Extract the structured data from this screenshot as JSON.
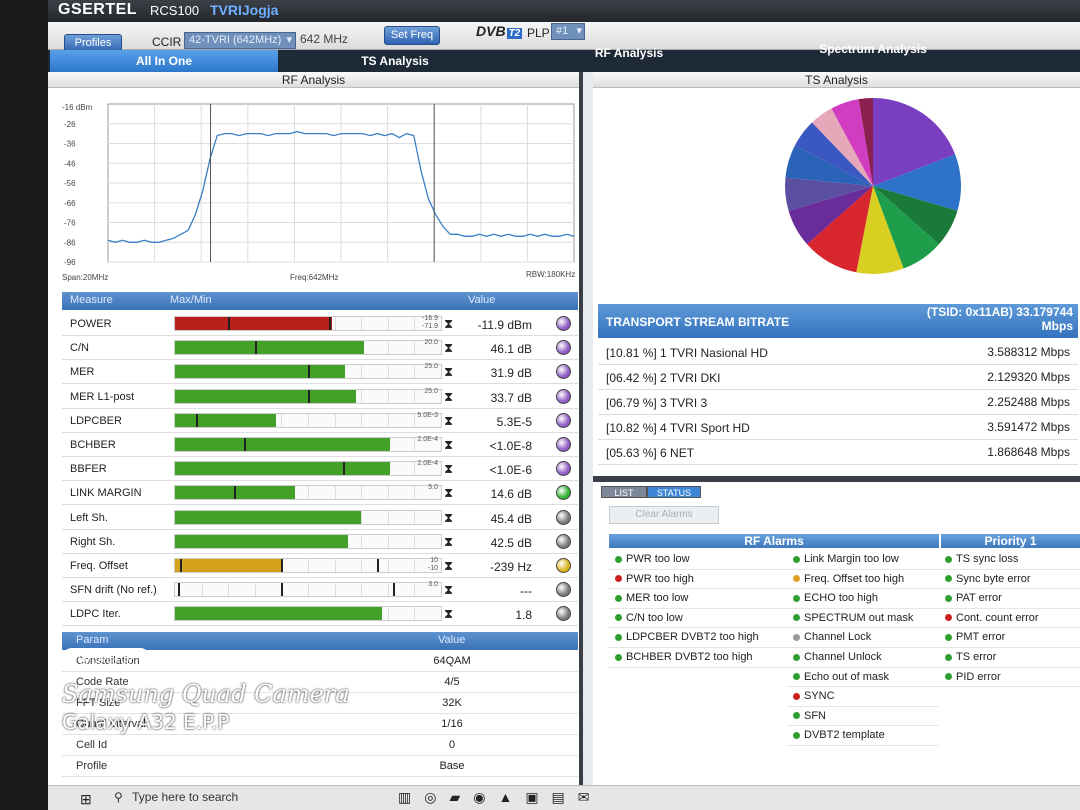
{
  "header": {
    "brand": "GSERTEL",
    "model": "RCS100",
    "station": "TVRIJogja"
  },
  "controls": {
    "profiles_label": "Profiles",
    "standard_label": "CCIR",
    "channel_value": "42-TVRI (642MHz)",
    "freq_text": "642 MHz",
    "set_freq_label": "Set Freq",
    "dvb_label": "DVB",
    "dvb_badge": "T2",
    "plp_label": "PLP",
    "plp_value": "#1"
  },
  "tabs": [
    {
      "label": "All In One",
      "active": true
    },
    {
      "label": "TS Analysis",
      "active": false
    },
    {
      "label": "RF Analysis",
      "active": false
    },
    {
      "label": "Spectrum Analysis",
      "active": false
    }
  ],
  "rf_panel": {
    "title": "RF Analysis",
    "ytick_top": "-16 dBm",
    "yticks": [
      "-26",
      "-36",
      "-46",
      "-56",
      "-66",
      "-76",
      "-86",
      "-96"
    ],
    "span_label": "Span:20MHz",
    "freq_label": "Freq:642MHz",
    "rbw_label": "RBW:180KHz",
    "spectrum_levels_dbm": [
      -85,
      -86,
      -85,
      -86,
      -86,
      -85,
      -86,
      -86,
      -85,
      -84,
      -82,
      -80,
      -72,
      -60,
      -44,
      -32,
      -31,
      -31,
      -32,
      -31,
      -31,
      -31,
      -32,
      -31,
      -31,
      -31,
      -30,
      -31,
      -31,
      -31,
      -31,
      -32,
      -31,
      -31,
      -31,
      -31,
      -32,
      -31,
      -32,
      -31,
      -33,
      -31,
      -32,
      -50,
      -64,
      -72,
      -78,
      -82,
      -82,
      -83,
      -83,
      -82,
      -83,
      -82,
      -83,
      -82,
      -83,
      -83,
      -82,
      -83,
      -82,
      -83,
      -83,
      -82,
      -83
    ]
  },
  "measure": {
    "headers": {
      "name": "Measure",
      "maxmin": "Max/Min",
      "value": "Value"
    },
    "rows": [
      {
        "name": "POWER",
        "fill": 0.59,
        "color": "#b8201a",
        "marks": [
          0.2,
          0.58
        ],
        "limit_top": "-16.9",
        "limit_bot": "-71.9",
        "value": "-11.9 dBm",
        "led": "#8f5cc8"
      },
      {
        "name": "C/N",
        "fill": 0.71,
        "color": "#43a12a",
        "marks": [
          0.3
        ],
        "limit_top": "20.0",
        "limit_bot": "",
        "value": "46.1 dB",
        "led": "#8f5cc8"
      },
      {
        "name": "MER",
        "fill": 0.64,
        "color": "#43a12a",
        "marks": [
          0.5
        ],
        "limit_top": "25.0",
        "limit_bot": "",
        "value": "31.9 dB",
        "led": "#8f5cc8"
      },
      {
        "name": "MER L1-post",
        "fill": 0.68,
        "color": "#43a12a",
        "marks": [
          0.5
        ],
        "limit_top": "25.0",
        "limit_bot": "",
        "value": "33.7 dB",
        "led": "#8f5cc8"
      },
      {
        "name": "LDPCBER",
        "fill": 0.38,
        "color": "#43a12a",
        "marks": [
          0.08
        ],
        "limit_top": "5.0E-3",
        "limit_bot": "",
        "value": "5.3E-5",
        "led": "#8f5cc8"
      },
      {
        "name": "BCHBER",
        "fill": 0.81,
        "color": "#43a12a",
        "marks": [
          0.26
        ],
        "limit_top": "2.0E-4",
        "limit_bot": "",
        "value": "<1.0E-8",
        "led": "#8f5cc8"
      },
      {
        "name": "BBFER",
        "fill": 0.81,
        "color": "#43a12a",
        "marks": [
          0.63
        ],
        "limit_top": "2.0E-4",
        "limit_bot": "",
        "value": "<1.0E-6",
        "led": "#8f5cc8"
      },
      {
        "name": "LINK MARGIN",
        "fill": 0.45,
        "color": "#43a12a",
        "marks": [
          0.22
        ],
        "limit_top": "5.0",
        "limit_bot": "",
        "value": "14.6 dB",
        "led": "#2fb02f"
      },
      {
        "name": "Left Sh.",
        "fill": 0.7,
        "color": "#43a12a",
        "marks": [],
        "limit_top": "",
        "limit_bot": "",
        "value": "45.4 dB",
        "led": "#7a7a7a"
      },
      {
        "name": "Right Sh.",
        "fill": 0.65,
        "color": "#43a12a",
        "marks": [],
        "limit_top": "",
        "limit_bot": "",
        "value": "42.5 dB",
        "led": "#7a7a7a"
      },
      {
        "name": "Freq. Offset",
        "fill": 0.4,
        "color": "#d4a21d",
        "marks": [
          0.02,
          0.4,
          0.76
        ],
        "limit_top": "10",
        "limit_bot": "-10",
        "value": "-239 Hz",
        "led": "#d8b318"
      },
      {
        "name": "SFN drift (No ref.)",
        "fill": 0,
        "color": "#43a12a",
        "marks": [
          0.01,
          0.4,
          0.82
        ],
        "limit_top": "3.0",
        "limit_bot": "",
        "value": "---",
        "led": "#7a7a7a"
      },
      {
        "name": "LDPC Iter.",
        "fill": 0.78,
        "color": "#43a12a",
        "marks": [],
        "limit_top": "",
        "limit_bot": "",
        "value": "1.8",
        "led": "#7a7a7a"
      }
    ]
  },
  "params": {
    "headers": {
      "name": "Param",
      "value": "Value"
    },
    "rows": [
      {
        "name": "Constellation",
        "value": "64QAM"
      },
      {
        "name": "Code Rate",
        "value": "4/5"
      },
      {
        "name": "FFT Size",
        "value": "32K"
      },
      {
        "name": "Guard Interval",
        "value": "1/16"
      },
      {
        "name": "Cell Id",
        "value": "0"
      },
      {
        "name": "Profile",
        "value": "Base"
      }
    ]
  },
  "ts_panel": {
    "title": "TS Analysis",
    "pie_slices": [
      {
        "value": 22,
        "color": "#7a3fc0"
      },
      {
        "value": 12,
        "color": "#2e73c9"
      },
      {
        "value": 8,
        "color": "#1a7a3a"
      },
      {
        "value": 9,
        "color": "#1e9e4a"
      },
      {
        "value": 10,
        "color": "#d8cf22"
      },
      {
        "value": 12,
        "color": "#d8262e"
      },
      {
        "value": 8,
        "color": "#6a2c9a"
      },
      {
        "value": 7,
        "color": "#5a4fa0"
      },
      {
        "value": 7,
        "color": "#2a63b8"
      },
      {
        "value": 6,
        "color": "#3b57c2"
      },
      {
        "value": 5,
        "color": "#e4a8b8"
      },
      {
        "value": 6,
        "color": "#d23cc0"
      },
      {
        "value": 3,
        "color": "#8a2050"
      }
    ],
    "bitrate_title": "TRANSPORT STREAM BITRATE",
    "tsid_line1": "(TSID: 0x11AB) 33.179744",
    "tsid_line2": "Mbps",
    "services": [
      {
        "name": "[10.81 %] 1 TVRI Nasional HD",
        "rate": "3.588312 Mbps"
      },
      {
        "name": "[06.42 %] 2 TVRI DKI",
        "rate": "2.129320 Mbps"
      },
      {
        "name": "[06.79 %] 3 TVRI 3",
        "rate": "2.252488 Mbps"
      },
      {
        "name": "[10.82 %] 4 TVRI Sport HD",
        "rate": "3.591472 Mbps"
      },
      {
        "name": "[05.63 %] 6 NET",
        "rate": "1.868648 Mbps"
      }
    ]
  },
  "alarms": {
    "tab_list": "LIST",
    "tab_status": "STATUS",
    "clear_label": "Clear Alarms",
    "rf_header": "RF Alarms",
    "priority_header": "Priority 1",
    "col1": [
      {
        "label": "PWR too low",
        "color": "#2fa02f"
      },
      {
        "label": "PWR too high",
        "color": "#cc2020"
      },
      {
        "label": "MER too low",
        "color": "#2fa02f"
      },
      {
        "label": "C/N too low",
        "color": "#2fa02f"
      },
      {
        "label": "LDPCBER DVBT2 too high",
        "color": "#2fa02f"
      },
      {
        "label": "BCHBER DVBT2 too high",
        "color": "#2fa02f"
      }
    ],
    "col2": [
      {
        "label": "Link Margin too low",
        "color": "#2fa02f"
      },
      {
        "label": "Freq. Offset too high",
        "color": "#e0a020"
      },
      {
        "label": "ECHO too high",
        "color": "#2fa02f"
      },
      {
        "label": "SPECTRUM out mask",
        "color": "#2fa02f"
      },
      {
        "label": "Channel Lock",
        "color": "#999999"
      },
      {
        "label": "Channel Unlock",
        "color": "#2fa02f"
      },
      {
        "label": "Echo out of mask",
        "color": "#2fa02f"
      },
      {
        "label": "SYNC",
        "color": "#cc2020"
      },
      {
        "label": "SFN",
        "color": "#2fa02f"
      },
      {
        "label": "DVBT2 template",
        "color": "#2fa02f"
      }
    ],
    "col3": [
      {
        "label": "TS sync loss",
        "color": "#2fa02f"
      },
      {
        "label": "Sync byte error",
        "color": "#2fa02f"
      },
      {
        "label": "PAT error",
        "color": "#2fa02f"
      },
      {
        "label": "Cont. count error",
        "color": "#cc2020"
      },
      {
        "label": "PMT error",
        "color": "#2fa02f"
      },
      {
        "label": "TS error",
        "color": "#2fa02f"
      },
      {
        "label": "PID error",
        "color": "#2fa02f"
      }
    ]
  },
  "taskbar": {
    "search_placeholder": "Type here to search"
  },
  "watermark": {
    "camera": "Samsung Quad Camera",
    "model": "Galaxy A32 E.P.P"
  }
}
